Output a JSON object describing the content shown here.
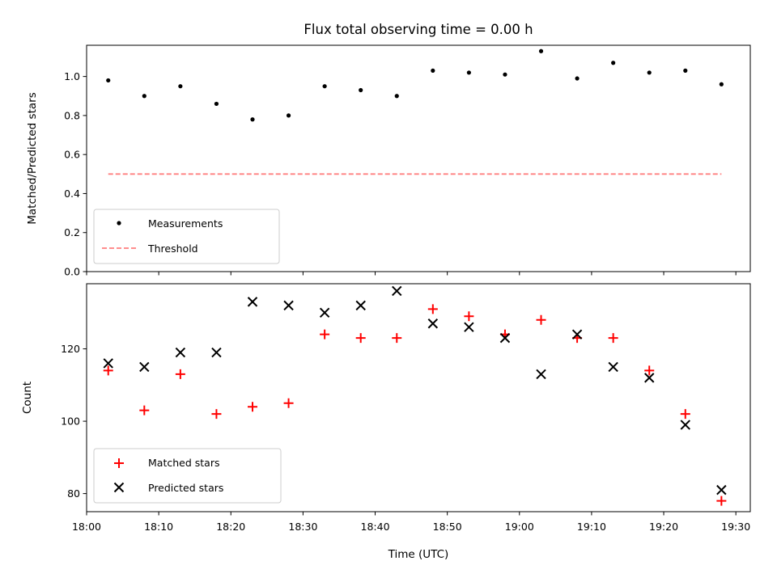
{
  "chart_data": [
    {
      "type": "scatter",
      "title": "Flux total observing time = 0.00 h",
      "xlabel": "",
      "ylabel": "Matched/Predicted stars",
      "xlim": [
        "18:00",
        "19:32"
      ],
      "ylim": [
        0.0,
        1.16
      ],
      "yticks": [
        0.0,
        0.2,
        0.4,
        0.6,
        0.8,
        1.0
      ],
      "ytick_labels": [
        "0.0",
        "0.2",
        "0.4",
        "0.6",
        "0.8",
        "1.0"
      ],
      "x": [
        "18:03",
        "18:08",
        "18:13",
        "18:18",
        "18:23",
        "18:28",
        "18:33",
        "18:38",
        "18:43",
        "18:48",
        "18:53",
        "18:58",
        "19:03",
        "19:08",
        "19:13",
        "19:18",
        "19:23",
        "19:28"
      ],
      "series": [
        {
          "name": "Measurements",
          "marker": "dot",
          "color": "#000000",
          "values": [
            0.98,
            0.9,
            0.95,
            0.86,
            0.78,
            0.8,
            0.95,
            0.93,
            0.9,
            1.03,
            1.02,
            1.01,
            1.13,
            0.99,
            1.07,
            1.02,
            1.03,
            0.96
          ]
        },
        {
          "name": "Threshold",
          "marker": "dashed-line",
          "color": "#ff7f7f",
          "x": [
            "18:03",
            "19:28"
          ],
          "values": [
            0.5,
            0.5
          ]
        }
      ],
      "legend": "lower-left",
      "grid": false
    },
    {
      "type": "scatter",
      "title": "",
      "xlabel": "Time (UTC)",
      "ylabel": "Count",
      "xlim": [
        "18:00",
        "19:32"
      ],
      "ylim": [
        75,
        138
      ],
      "yticks": [
        80,
        100,
        120
      ],
      "ytick_labels": [
        "80",
        "100",
        "120"
      ],
      "xticks": [
        "18:00",
        "18:10",
        "18:20",
        "18:30",
        "18:40",
        "18:50",
        "19:00",
        "19:10",
        "19:20",
        "19:30"
      ],
      "xtick_labels": [
        "18:00",
        "18:10",
        "18:20",
        "18:30",
        "18:40",
        "18:50",
        "19:00",
        "19:10",
        "19:20",
        "19:30"
      ],
      "x": [
        "18:03",
        "18:08",
        "18:13",
        "18:18",
        "18:23",
        "18:28",
        "18:33",
        "18:38",
        "18:43",
        "18:48",
        "18:53",
        "18:58",
        "19:03",
        "19:08",
        "19:13",
        "19:18",
        "19:23",
        "19:28"
      ],
      "series": [
        {
          "name": "Matched stars",
          "marker": "plus",
          "color": "#ff0000",
          "values": [
            114,
            103,
            113,
            102,
            104,
            105,
            124,
            123,
            123,
            131,
            129,
            124,
            128,
            123,
            123,
            114,
            102,
            78
          ]
        },
        {
          "name": "Predicted stars",
          "marker": "x",
          "color": "#000000",
          "values": [
            116,
            115,
            119,
            119,
            133,
            132,
            130,
            132,
            136,
            127,
            126,
            123,
            113,
            124,
            115,
            112,
            99,
            81
          ]
        }
      ],
      "legend": "lower-left",
      "grid": false
    }
  ]
}
